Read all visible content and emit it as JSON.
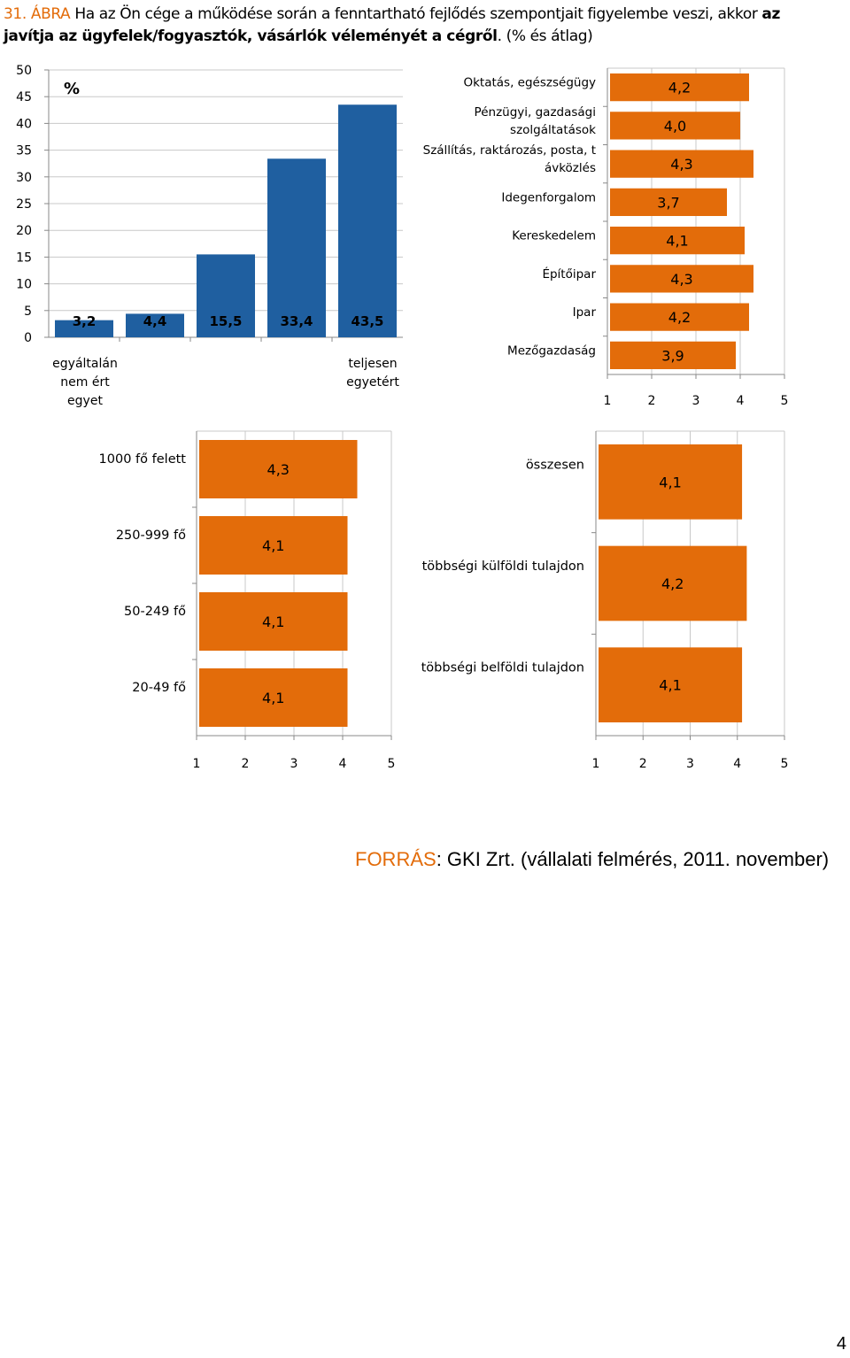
{
  "title": {
    "number": "31. ÁBRA",
    "text_plain": "Ha az Ön cége a működése során a fenntartható fejlődés szempontjait figyelembe veszi, akkor",
    "text_bold": "az javítja az ügyfelek/fogyasztók, vásárlók véleményét a cégről",
    "text_tail": ". (% és átlag)"
  },
  "source": {
    "label": "FORRÁS",
    "text": ": GKI Zrt. (vállalati felmérés, 2011. november)"
  },
  "page_number": "4",
  "colors": {
    "blue": "#1f5fa0",
    "orange": "#e36c0a",
    "accent": "#e36c0a"
  },
  "chart_data": [
    {
      "id": "distribution",
      "type": "bar",
      "unit_label": "%",
      "ylim": [
        0,
        50
      ],
      "yticks": [
        "0",
        "5",
        "10",
        "15",
        "20",
        "25",
        "30",
        "35",
        "40",
        "45",
        "50"
      ],
      "values": [
        3.2,
        4.4,
        15.5,
        33.4,
        43.5
      ],
      "data_labels": [
        "3,2",
        "4,4",
        "15,5",
        "33,4",
        "43,5"
      ],
      "end_labels": {
        "left": [
          "egyáltalán",
          "nem ért",
          "egyet"
        ],
        "right": [
          "teljesen",
          "egyetért"
        ]
      },
      "grid": true,
      "color": "#1f5fa0"
    },
    {
      "id": "by-sector",
      "type": "bar",
      "orientation": "horizontal",
      "categories": [
        [
          "Oktatás, egészségügy"
        ],
        [
          "Pénzügyi, gazdasági",
          "szolgáltatások"
        ],
        [
          "Szállítás, raktározás, posta, t",
          "ávközlés"
        ],
        [
          "Idegenforgalom"
        ],
        [
          "Kereskedelem"
        ],
        [
          "Építőipar"
        ],
        [
          "Ipar"
        ],
        [
          "Mezőgazdaság"
        ]
      ],
      "values": [
        4.2,
        4.0,
        4.3,
        3.7,
        4.1,
        4.3,
        4.2,
        3.9
      ],
      "data_labels": [
        "4,2",
        "4,0",
        "4,3",
        "3,7",
        "4,1",
        "4,3",
        "4,2",
        "3,9"
      ],
      "xlim": [
        1,
        5
      ],
      "xticks": [
        "1",
        "2",
        "3",
        "4",
        "5"
      ],
      "color": "#e36c0a"
    },
    {
      "id": "by-size",
      "type": "bar",
      "orientation": "horizontal",
      "categories": [
        [
          "1000 fő felett"
        ],
        [
          "250-999 fő"
        ],
        [
          "50-249 fő"
        ],
        [
          "20-49 fő"
        ]
      ],
      "values": [
        4.3,
        4.1,
        4.1,
        4.1
      ],
      "data_labels": [
        "4,3",
        "4,1",
        "4,1",
        "4,1"
      ],
      "xlim": [
        1,
        5
      ],
      "xticks": [
        "1",
        "2",
        "3",
        "4",
        "5"
      ],
      "color": "#e36c0a"
    },
    {
      "id": "by-ownership",
      "type": "bar",
      "orientation": "horizontal",
      "categories": [
        [
          "összesen"
        ],
        [
          "többségi külföldi tulajdon"
        ],
        [
          "többségi belföldi tulajdon"
        ]
      ],
      "values": [
        4.1,
        4.2,
        4.1
      ],
      "data_labels": [
        "4,1",
        "4,2",
        "4,1"
      ],
      "xlim": [
        1,
        5
      ],
      "xticks": [
        "1",
        "2",
        "3",
        "4",
        "5"
      ],
      "color": "#e36c0a"
    }
  ]
}
